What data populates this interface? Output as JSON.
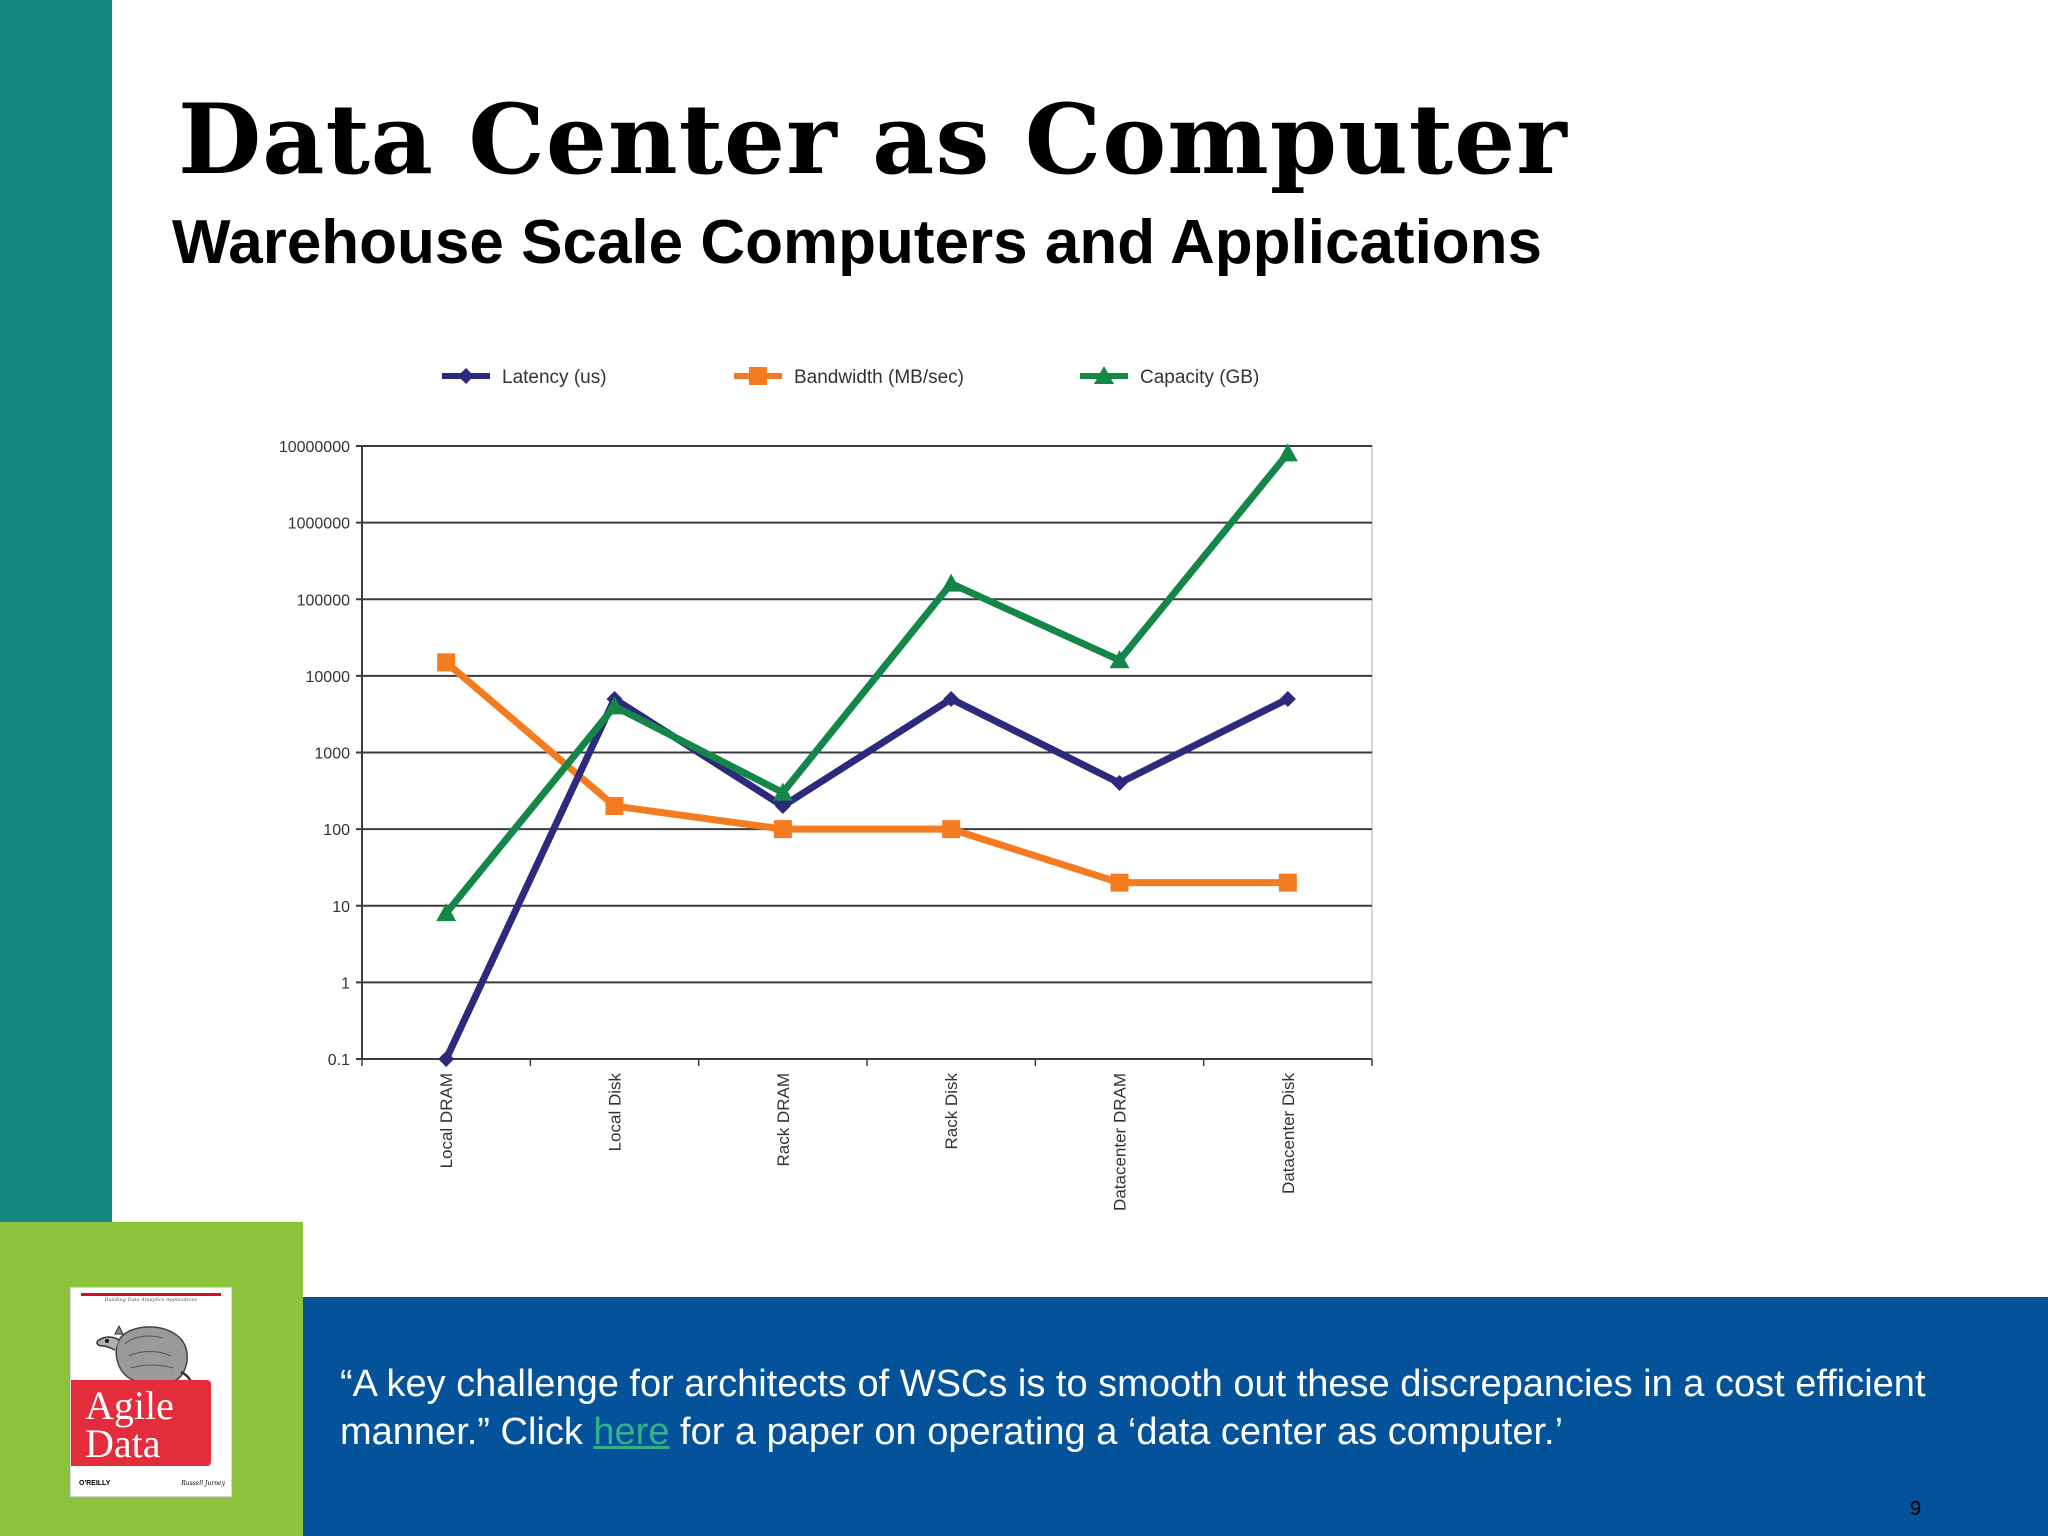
{
  "slide": {
    "title": "Data Center as Computer",
    "subtitle": "Warehouse Scale Computers and Applications",
    "quote_before_link": "“A key challenge for architects of WSCs is to smooth out these discrepancies in a cost efficient manner.” Click ",
    "link_text": "here",
    "quote_after_link": " for a paper on operating a ‘data center as computer.’",
    "page_number": "9"
  },
  "book": {
    "tagline": "Building Data Analytics Applications",
    "title_line1": "Agile",
    "title_line2": "Data",
    "publisher": "O'REILLY",
    "author": "Russell Jurney"
  },
  "colors": {
    "sidebar": "#13877f",
    "accent_green": "#8dc23f",
    "footer_blue": "#03529a",
    "link": "#31b28f",
    "latency": "#2b2a7c",
    "bandwidth": "#f47b20",
    "capacity": "#148748"
  },
  "chart_data": {
    "type": "line",
    "y_scale": "log",
    "ylim": [
      0.1,
      10000000
    ],
    "yticks": [
      "0.1",
      "1",
      "10",
      "100",
      "1000",
      "10000",
      "100000",
      "1000000",
      "10000000"
    ],
    "grid": true,
    "legend_position": "top",
    "categories": [
      "Local DRAM",
      "Local Disk",
      "Rack DRAM",
      "Rack Disk",
      "Datacenter DRAM",
      "Datacenter Disk"
    ],
    "series": [
      {
        "name": "Latency (us)",
        "color": "#2b2a7c",
        "marker": "diamond",
        "values": [
          0.1,
          5000,
          200,
          5000,
          400,
          5000
        ]
      },
      {
        "name": "Bandwidth (MB/sec)",
        "color": "#f47b20",
        "marker": "square",
        "values": [
          15000,
          200,
          100,
          100,
          20,
          20
        ]
      },
      {
        "name": "Capacity (GB)",
        "color": "#148748",
        "marker": "triangle",
        "values": [
          8,
          4000,
          300,
          160000,
          16000,
          8000000
        ]
      }
    ]
  }
}
